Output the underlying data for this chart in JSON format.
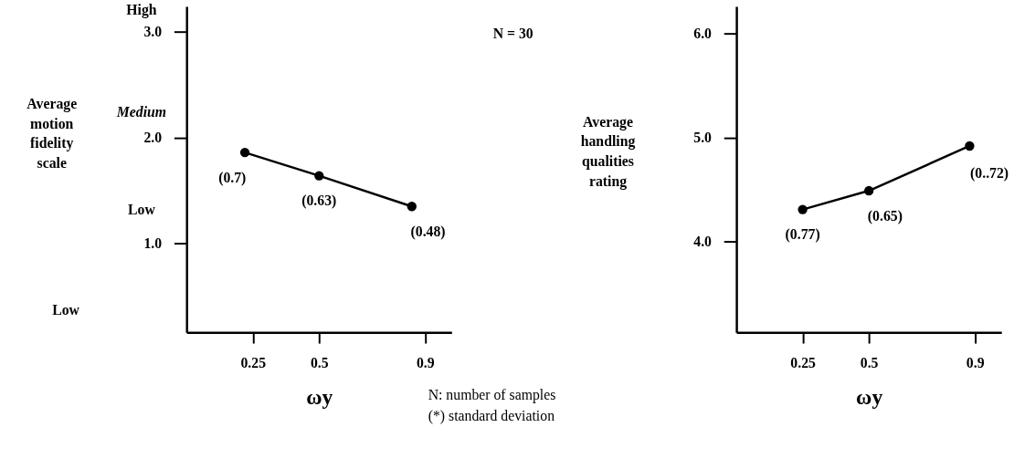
{
  "chart_data": [
    {
      "type": "line",
      "xlabel": "ωy",
      "ylabel": "Average motion fidelity scale",
      "x": [
        0.22,
        0.5,
        0.85
      ],
      "series": [
        {
          "color": "#000000",
          "values": [
            1.86,
            1.64,
            1.35
          ]
        }
      ],
      "xlim": [
        0,
        1
      ],
      "xticks": [
        0.25,
        0.5,
        0.9
      ],
      "ylim": [
        0.16,
        3.24
      ],
      "yticks": [
        {
          "value": 1,
          "label": "1.0"
        },
        {
          "value": 2,
          "label": "2.0"
        },
        {
          "value": 3,
          "label": "3.0"
        }
      ],
      "grid": false,
      "marker": "circle",
      "line_style": "solid",
      "annotations": [
        "High",
        "Medium",
        "Low",
        "Low",
        "N = 30",
        "N:  number of samples",
        "(*) standard deviation",
        {
          "text": "(0.7)",
          "x": 0.22,
          "y": 1.86
        },
        {
          "text": "(0.63)",
          "x": 0.5,
          "y": 1.64
        },
        {
          "text": "(0.48)",
          "x": 0.85,
          "y": 1.35
        }
      ]
    },
    {
      "type": "line",
      "xlabel": "ωy",
      "ylabel": "Average handling qualities rating",
      "x": [
        0.25,
        0.5,
        0.88
      ],
      "series": [
        {
          "color": "#000000",
          "values": [
            4.31,
            4.49,
            4.92
          ]
        }
      ],
      "xlim": [
        0,
        1
      ],
      "xticks": [
        0.25,
        0.5,
        0.9
      ],
      "ylim": [
        3.13,
        6.26
      ],
      "yticks": [
        {
          "value": 4,
          "label": "4.0"
        },
        {
          "value": 5,
          "label": "5.0"
        },
        {
          "value": 6,
          "label": "6.0"
        }
      ],
      "grid": false,
      "marker": "circle",
      "line_style": "solid",
      "annotations": [
        {
          "text": "(0.77)",
          "x": 0.25,
          "y": 4.31
        },
        {
          "text": "(0.65)",
          "x": 0.5,
          "y": 4.49
        },
        {
          "text": "(0..72)",
          "x": 0.88,
          "y": 4.92
        }
      ]
    }
  ]
}
